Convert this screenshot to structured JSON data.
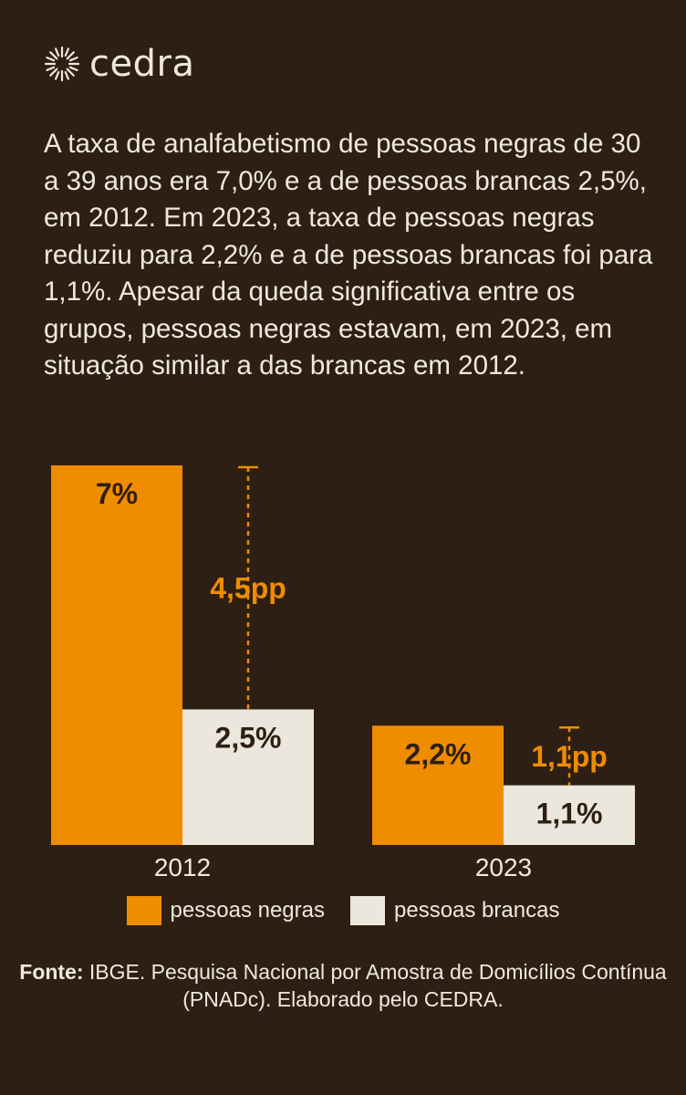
{
  "brand": {
    "name": "cedra"
  },
  "intro_text": "A taxa de analfabetismo de pessoas negras de 30 a 39 anos era 7,0% e a de pessoas brancas 2,5%, em 2012. Em 2023, a taxa de pessoas negras reduziu para 2,2% e a de pessoas brancas foi para 1,1%. Apesar da queda significativa entre os grupos, pessoas negras estavam, em 2023, em situação similar a das brancas em 2012.",
  "colors": {
    "background": "#2e1f14",
    "negras": "#f08c00",
    "brancas": "#ece7dc",
    "text": "#efe9dc"
  },
  "chart_data": {
    "type": "bar",
    "title": "",
    "categories": [
      "2012",
      "2023"
    ],
    "series": [
      {
        "name": "pessoas negras",
        "values": [
          7.0,
          2.2
        ],
        "labels": [
          "7%",
          "2,2%"
        ],
        "color": "#f08c00"
      },
      {
        "name": "pessoas brancas",
        "values": [
          2.5,
          1.1
        ],
        "labels": [
          "2,5%",
          "1,1%"
        ],
        "color": "#ece7dc"
      }
    ],
    "differences": [
      {
        "category": "2012",
        "label": "4,5pp"
      },
      {
        "category": "2023",
        "label": "1,1pp"
      }
    ],
    "xlabel": "",
    "ylabel": "",
    "ylim": [
      0,
      7.0
    ],
    "grid": false,
    "legend_position": "bottom"
  },
  "legend": [
    {
      "label": "pessoas negras"
    },
    {
      "label": "pessoas brancas"
    }
  ],
  "source": {
    "label": "Fonte:",
    "text": " IBGE. Pesquisa Nacional por Amostra de Domicílios Contínua (PNADc). Elaborado pelo CEDRA."
  }
}
